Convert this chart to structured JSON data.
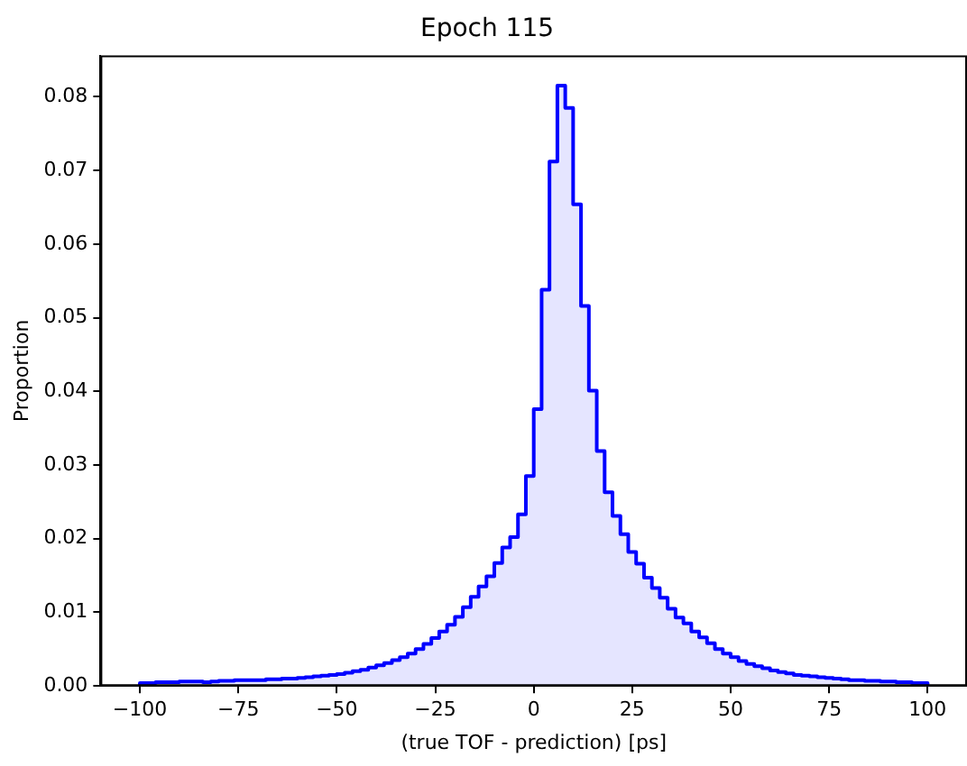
{
  "chart_data": {
    "type": "histogram",
    "title": "Epoch 115",
    "xlabel": "(true TOF - prediction) [ps]",
    "ylabel": "Proportion",
    "bins": [
      -100,
      -98,
      -96,
      -94,
      -92,
      -90,
      -88,
      -86,
      -84,
      -82,
      -80,
      -78,
      -76,
      -74,
      -72,
      -70,
      -68,
      -66,
      -64,
      -62,
      -60,
      -58,
      -56,
      -54,
      -52,
      -50,
      -48,
      -46,
      -44,
      -42,
      -40,
      -38,
      -36,
      -34,
      -32,
      -30,
      -28,
      -26,
      -24,
      -22,
      -20,
      -18,
      -16,
      -14,
      -12,
      -10,
      -8,
      -6,
      -4,
      -2,
      0,
      2,
      4,
      6,
      8,
      10,
      12,
      14,
      16,
      18,
      20,
      22,
      24,
      26,
      28,
      30,
      32,
      34,
      36,
      38,
      40,
      42,
      44,
      46,
      48,
      50,
      52,
      54,
      56,
      58,
      60,
      62,
      64,
      66,
      68,
      70,
      72,
      74,
      76,
      78,
      80,
      82,
      84,
      86,
      88,
      90,
      92,
      94,
      96,
      98,
      100
    ],
    "values": [
      0.0004,
      0.0004,
      0.0005,
      0.0005,
      0.0005,
      0.0006,
      0.0006,
      0.0006,
      0.0005,
      0.0006,
      0.0007,
      0.0007,
      0.0008,
      0.0008,
      0.0008,
      0.0008,
      0.0009,
      0.0009,
      0.001,
      0.001,
      0.0011,
      0.0012,
      0.0013,
      0.0014,
      0.0015,
      0.0016,
      0.0018,
      0.002,
      0.0022,
      0.0025,
      0.0028,
      0.0031,
      0.0035,
      0.0039,
      0.0044,
      0.005,
      0.0057,
      0.0065,
      0.0074,
      0.0083,
      0.0094,
      0.0107,
      0.0121,
      0.0135,
      0.0149,
      0.0167,
      0.0188,
      0.0202,
      0.0233,
      0.0285,
      0.0376,
      0.0538,
      0.0712,
      0.0815,
      0.0785,
      0.0654,
      0.0516,
      0.0401,
      0.0319,
      0.0263,
      0.0231,
      0.0206,
      0.0182,
      0.0166,
      0.0147,
      0.0133,
      0.012,
      0.0105,
      0.0093,
      0.0085,
      0.0074,
      0.0066,
      0.0058,
      0.005,
      0.0044,
      0.0039,
      0.0034,
      0.003,
      0.0027,
      0.0024,
      0.0021,
      0.0019,
      0.0017,
      0.0015,
      0.0014,
      0.0013,
      0.0012,
      0.0011,
      0.001,
      0.0009,
      0.0008,
      0.0008,
      0.0007,
      0.0007,
      0.0006,
      0.0006,
      0.0005,
      0.0005,
      0.0004,
      0.0004
    ],
    "color": "#0000ff",
    "xlim": [
      -110,
      110
    ],
    "xticks": [
      {
        "value": -100,
        "label": "−100"
      },
      {
        "value": -75,
        "label": "−75"
      },
      {
        "value": -50,
        "label": "−50"
      },
      {
        "value": -25,
        "label": "−25"
      },
      0,
      25,
      50,
      75,
      100
    ],
    "ylim": [
      0,
      0.0856
    ],
    "yticks": [
      {
        "value": 0,
        "label": "0.00"
      },
      {
        "value": 0.01,
        "label": "0.01"
      },
      {
        "value": 0.02,
        "label": "0.02"
      },
      {
        "value": 0.03,
        "label": "0.03"
      },
      {
        "value": 0.04,
        "label": "0.04"
      },
      {
        "value": 0.05,
        "label": "0.05"
      },
      {
        "value": 0.06,
        "label": "0.06"
      },
      {
        "value": 0.07,
        "label": "0.07"
      },
      {
        "value": 0.08,
        "label": "0.08"
      }
    ],
    "grid": false,
    "legend": false
  }
}
